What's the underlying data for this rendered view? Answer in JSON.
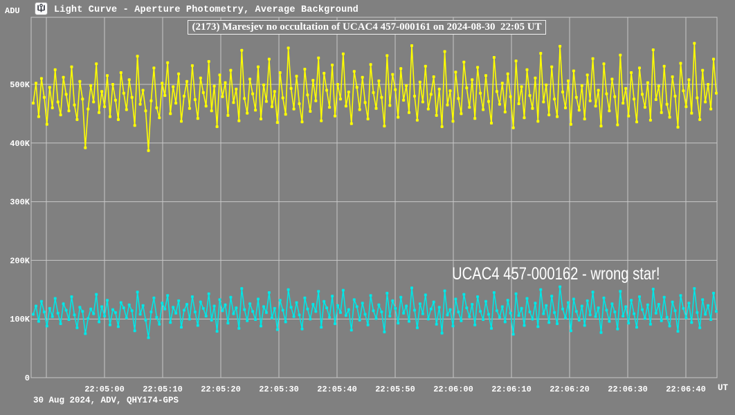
{
  "header": {
    "y_axis_unit": "ADU",
    "app_icon": "light-curve-icon",
    "title": "Light Curve - Aperture Photometry, Average Background"
  },
  "title_box": {
    "text": "(2173) Maresjev no occultation of UCAC4 457-000161 on 2024-08-30  22:05 UT"
  },
  "annotation": {
    "text": "UCAC4 457-000162 - wrong star!"
  },
  "footer": {
    "text": "30 Aug 2024, ADV, QHY174-GPS"
  },
  "x_axis": {
    "unit_label": "UT"
  },
  "colors": {
    "background": "#808080",
    "grid": "#c8c8c8",
    "text": "#ffffff",
    "title_box_border": "#f2f2f2",
    "target_series": "#ffff00",
    "comparison_series": "#00e6e6"
  },
  "chart_data": {
    "type": "line",
    "title": "(2173) Maresjev no occultation of UCAC4 457-000161 on 2024-08-30  22:05 UT",
    "xlabel": "UT",
    "ylabel": "ADU",
    "grid": true,
    "legend": "none",
    "xlim": [
      "22:04:47",
      "22:06:44"
    ],
    "ylim_adu": [
      0,
      613000
    ],
    "y_tick_labels": [
      "0",
      "100K",
      "200K",
      "300K",
      "400K",
      "500K"
    ],
    "x_tick_labels": [
      "22:05:00",
      "22:05:10",
      "22:05:20",
      "22:05:30",
      "22:05:40",
      "22:05:50",
      "22:06:00",
      "22:06:10",
      "22:06:20",
      "22:06:30",
      "22:06:40"
    ],
    "series": [
      {
        "name": "UCAC4 457-000161",
        "role": "target",
        "color": "#ffff00",
        "unit": "kADU",
        "values_k": [
          468,
          502,
          445,
          510,
          478,
          432,
          495,
          460,
          525,
          470,
          448,
          512,
          483,
          455,
          530,
          465,
          440,
          505,
          475,
          392,
          458,
          498,
          470,
          535,
          452,
          488,
          462,
          515,
          445,
          500,
          473,
          440,
          520,
          485,
          457,
          508,
          478,
          430,
          548,
          466,
          490,
          455,
          387,
          472,
          528,
          460,
          443,
          502,
          481,
          537,
          450,
          496,
          468,
          518,
          437,
          480,
          505,
          459,
          532,
          474,
          442,
          511,
          486,
          463,
          539,
          455,
          497,
          428,
          516,
          479,
          503,
          447,
          524,
          469,
          492,
          438,
          558,
          476,
          451,
          509,
          484,
          456,
          530,
          441,
          499,
          471,
          543,
          462,
          488,
          435,
          520,
          477,
          449,
          562,
          493,
          458,
          514,
          467,
          436,
          526,
          482,
          454,
          507,
          472,
          545,
          438,
          519,
          490,
          461,
          533,
          446,
          500,
          475,
          552,
          463,
          487,
          433,
          522,
          495,
          457,
          512,
          469,
          441,
          534,
          486,
          459,
          506,
          478,
          429,
          549,
          464,
          517,
          491,
          444,
          527,
          473,
          498,
          452,
          566,
          480,
          439,
          504,
          470,
          531,
          458,
          483,
          513,
          447,
          492,
          428,
          556,
          465,
          489,
          437,
          521,
          476,
          450,
          538,
          494,
          461,
          508,
          442,
          529,
          485,
          457,
          515,
          471,
          434,
          546,
          488,
          466,
          502,
          453,
          518,
          479,
          426,
          540,
          467,
          496,
          443,
          525,
          481,
          459,
          511,
          437,
          553,
          470,
          499,
          448,
          530,
          475,
          445,
          565,
          487,
          460,
          506,
          432,
          523,
          478,
          456,
          498,
          441,
          516,
          472,
          544,
          463,
          490,
          429,
          535,
          484,
          455,
          509,
          479,
          431,
          550,
          468,
          493,
          446,
          520,
          475,
          436,
          528,
          483,
          461,
          503,
          439,
          559,
          474,
          497,
          452,
          531,
          466,
          444,
          513,
          480,
          427,
          536,
          489,
          462,
          508,
          451,
          570,
          477,
          440,
          524,
          470,
          500,
          458,
          543,
          485
        ]
      },
      {
        "name": "UCAC4 457-000162",
        "role": "comparison (wrong star)",
        "color": "#00e6e6",
        "unit": "kADU",
        "values_k": [
          108,
          122,
          96,
          130,
          112,
          88,
          118,
          104,
          135,
          110,
          92,
          126,
          115,
          99,
          138,
          107,
          85,
          120,
          113,
          75,
          101,
          117,
          109,
          142,
          95,
          121,
          105,
          132,
          90,
          116,
          111,
          87,
          128,
          119,
          102,
          124,
          114,
          80,
          146,
          108,
          123,
          98,
          68,
          112,
          136,
          103,
          91,
          127,
          117,
          140,
          94,
          120,
          110,
          131,
          86,
          115,
          125,
          100,
          138,
          112,
          89,
          129,
          118,
          105,
          143,
          98,
          122,
          79,
          133,
          114,
          124,
          93,
          137,
          109,
          119,
          84,
          152,
          116,
          97,
          126,
          113,
          99,
          134,
          88,
          121,
          111,
          145,
          102,
          118,
          82,
          132,
          115,
          95,
          150,
          120,
          104,
          128,
          107,
          83,
          136,
          117,
          100,
          125,
          113,
          147,
          86,
          130,
          119,
          103,
          139,
          92,
          123,
          111,
          149,
          106,
          116,
          81,
          133,
          121,
          98,
          127,
          108,
          90,
          140,
          114,
          101,
          124,
          112,
          78,
          144,
          105,
          131,
          118,
          93,
          137,
          110,
          122,
          96,
          153,
          115,
          85,
          126,
          109,
          141,
          100,
          117,
          129,
          91,
          120,
          76,
          148,
          107,
          116,
          88,
          134,
          112,
          97,
          142,
          119,
          104,
          125,
          90,
          138,
          113,
          99,
          130,
          108,
          84,
          145,
          114,
          103,
          121,
          95,
          132,
          110,
          74,
          143,
          106,
          118,
          89,
          135,
          112,
          100,
          127,
          87,
          150,
          109,
          123,
          94,
          139,
          111,
          92,
          155,
          117,
          102,
          128,
          80,
          134,
          113,
          98,
          122,
          89,
          131,
          107,
          146,
          104,
          119,
          77,
          136,
          115,
          96,
          126,
          112,
          83,
          147,
          105,
          121,
          93,
          132,
          109,
          86,
          138,
          116,
          101,
          124,
          91,
          151,
          110,
          125,
          97,
          137,
          103,
          88,
          129,
          114,
          79,
          140,
          118,
          102,
          127,
          94,
          152,
          111,
          85,
          133,
          108,
          123,
          99,
          144,
          113
        ]
      }
    ]
  }
}
